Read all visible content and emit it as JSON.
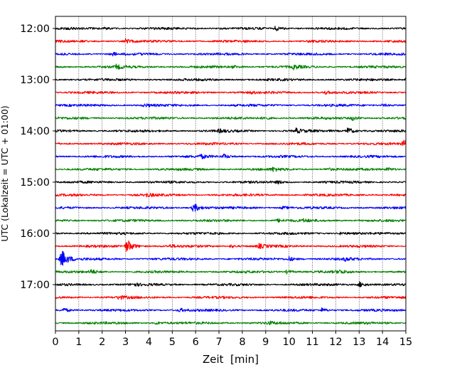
{
  "chart_data": {
    "type": "line",
    "title": "",
    "xlabel": "Zeit  [min]",
    "ylabel": "UTC (Lokalzeit = UTC + 01:00)",
    "xlim": [
      0,
      15
    ],
    "x_ticks": [
      "0",
      "1",
      "2",
      "3",
      "4",
      "5",
      "6",
      "7",
      "8",
      "9",
      "10",
      "11",
      "12",
      "13",
      "14",
      "15"
    ],
    "y_ticks": [
      "12:00",
      "13:00",
      "14:00",
      "15:00",
      "16:00",
      "17:00"
    ],
    "grid": true,
    "trace_colors": [
      "#000000",
      "#ff0000",
      "#0000ff",
      "#008000"
    ],
    "traces": [
      {
        "start": "12:00",
        "events": [
          [
            9.4,
            3
          ],
          [
            2.1,
            1.5
          ]
        ]
      },
      {
        "start": "12:15",
        "events": [
          [
            3.0,
            2.5
          ]
        ]
      },
      {
        "start": "12:30",
        "events": [
          [
            2.4,
            2.5
          ]
        ]
      },
      {
        "start": "12:45",
        "events": [
          [
            2.6,
            2.5
          ],
          [
            7.6,
            2
          ],
          [
            10.2,
            2.5
          ]
        ]
      },
      {
        "start": "13:00",
        "events": [
          [
            15.0,
            3
          ]
        ]
      },
      {
        "start": "13:15",
        "events": [
          [
            11.5,
            2.5
          ],
          [
            8.3,
            1.5
          ]
        ]
      },
      {
        "start": "13:30",
        "events": [
          [
            3.8,
            2
          ],
          [
            14.0,
            2
          ]
        ]
      },
      {
        "start": "13:45",
        "events": [
          [
            12.7,
            3
          ],
          [
            8.9,
            2
          ]
        ]
      },
      {
        "start": "14:00",
        "events": [
          [
            12.5,
            5
          ],
          [
            10.3,
            3
          ],
          [
            7.0,
            2
          ]
        ]
      },
      {
        "start": "14:15",
        "events": [
          [
            14.9,
            6
          ]
        ]
      },
      {
        "start": "14:30",
        "events": [
          [
            6.2,
            2.5
          ],
          [
            7.2,
            3
          ]
        ]
      },
      {
        "start": "14:45",
        "events": [
          [
            9.3,
            2.5
          ],
          [
            14.2,
            2.5
          ],
          [
            11.6,
            2
          ]
        ]
      },
      {
        "start": "15:00",
        "events": [
          [
            9.5,
            2
          ]
        ]
      },
      {
        "start": "15:15",
        "events": [
          [
            3.9,
            2
          ]
        ]
      },
      {
        "start": "15:30",
        "events": [
          [
            5.9,
            7
          ],
          [
            9.7,
            2
          ]
        ]
      },
      {
        "start": "15:45",
        "events": [
          [
            9.5,
            2
          ],
          [
            10.6,
            1.5
          ]
        ]
      },
      {
        "start": "16:00",
        "events": [
          [
            12.2,
            2
          ]
        ]
      },
      {
        "start": "16:15",
        "events": [
          [
            3.05,
            10
          ],
          [
            8.7,
            3
          ],
          [
            7.5,
            2
          ],
          [
            4.9,
            1.5
          ]
        ]
      },
      {
        "start": "16:30",
        "events": [
          [
            0.25,
            14
          ],
          [
            10.0,
            3
          ],
          [
            12.4,
            2
          ]
        ]
      },
      {
        "start": "16:45",
        "events": [
          [
            1.5,
            3
          ],
          [
            9.9,
            2.5
          ],
          [
            12.1,
            2.5
          ]
        ]
      },
      {
        "start": "17:00",
        "events": [
          [
            13.0,
            4
          ],
          [
            3.3,
            2
          ]
        ]
      },
      {
        "start": "17:15",
        "events": [
          [
            2.7,
            2.5
          ]
        ]
      },
      {
        "start": "17:30",
        "events": [
          [
            0.35,
            3
          ],
          [
            5.3,
            2.5
          ],
          [
            11.4,
            2.5
          ]
        ]
      },
      {
        "start": "17:45",
        "events": [
          [
            4.3,
            2
          ],
          [
            9.1,
            2
          ]
        ]
      }
    ]
  }
}
